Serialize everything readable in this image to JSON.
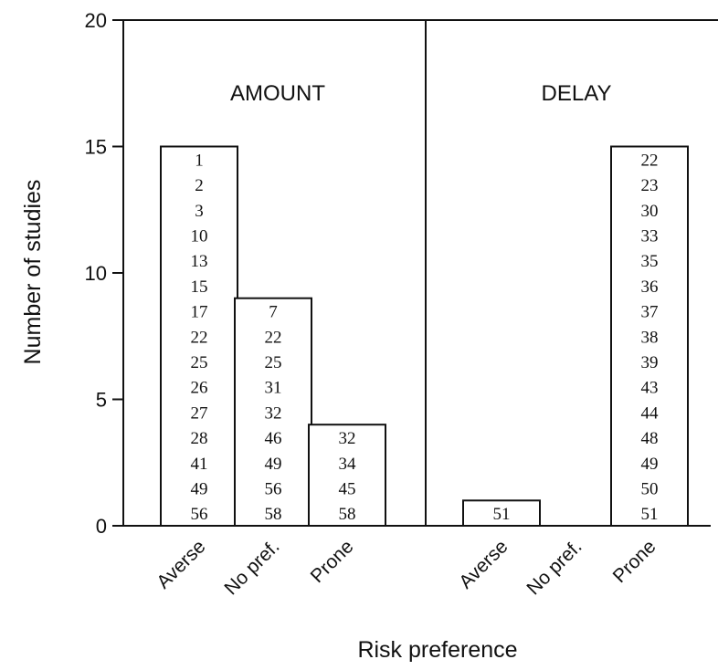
{
  "chart_data": {
    "type": "bar",
    "ylabel": "Number of studies",
    "xlabel": "Risk preference",
    "ylim": [
      0,
      20
    ],
    "yticks": [
      0,
      5,
      10,
      15,
      20
    ],
    "grid": false,
    "categories": [
      "Averse",
      "No pref.",
      "Prone"
    ],
    "panels": [
      {
        "title": "AMOUNT",
        "bars": [
          {
            "category": "Averse",
            "value": 15,
            "studies": [
              "1",
              "2",
              "3",
              "10",
              "13",
              "15",
              "17",
              "22",
              "25",
              "26",
              "27",
              "28",
              "41",
              "49",
              "56"
            ]
          },
          {
            "category": "No pref.",
            "value": 9,
            "studies": [
              "7",
              "22",
              "25",
              "31",
              "32",
              "46",
              "49",
              "56",
              "58"
            ]
          },
          {
            "category": "Prone",
            "value": 4,
            "studies": [
              "32",
              "34",
              "45",
              "58"
            ]
          }
        ]
      },
      {
        "title": "DELAY",
        "bars": [
          {
            "category": "Averse",
            "value": 1,
            "studies": [
              "51"
            ]
          },
          {
            "category": "No pref.",
            "value": 0,
            "studies": []
          },
          {
            "category": "Prone",
            "value": 15,
            "studies": [
              "22",
              "23",
              "30",
              "33",
              "35",
              "36",
              "37",
              "38",
              "39",
              "43",
              "44",
              "48",
              "49",
              "50",
              "51"
            ]
          }
        ]
      }
    ]
  }
}
